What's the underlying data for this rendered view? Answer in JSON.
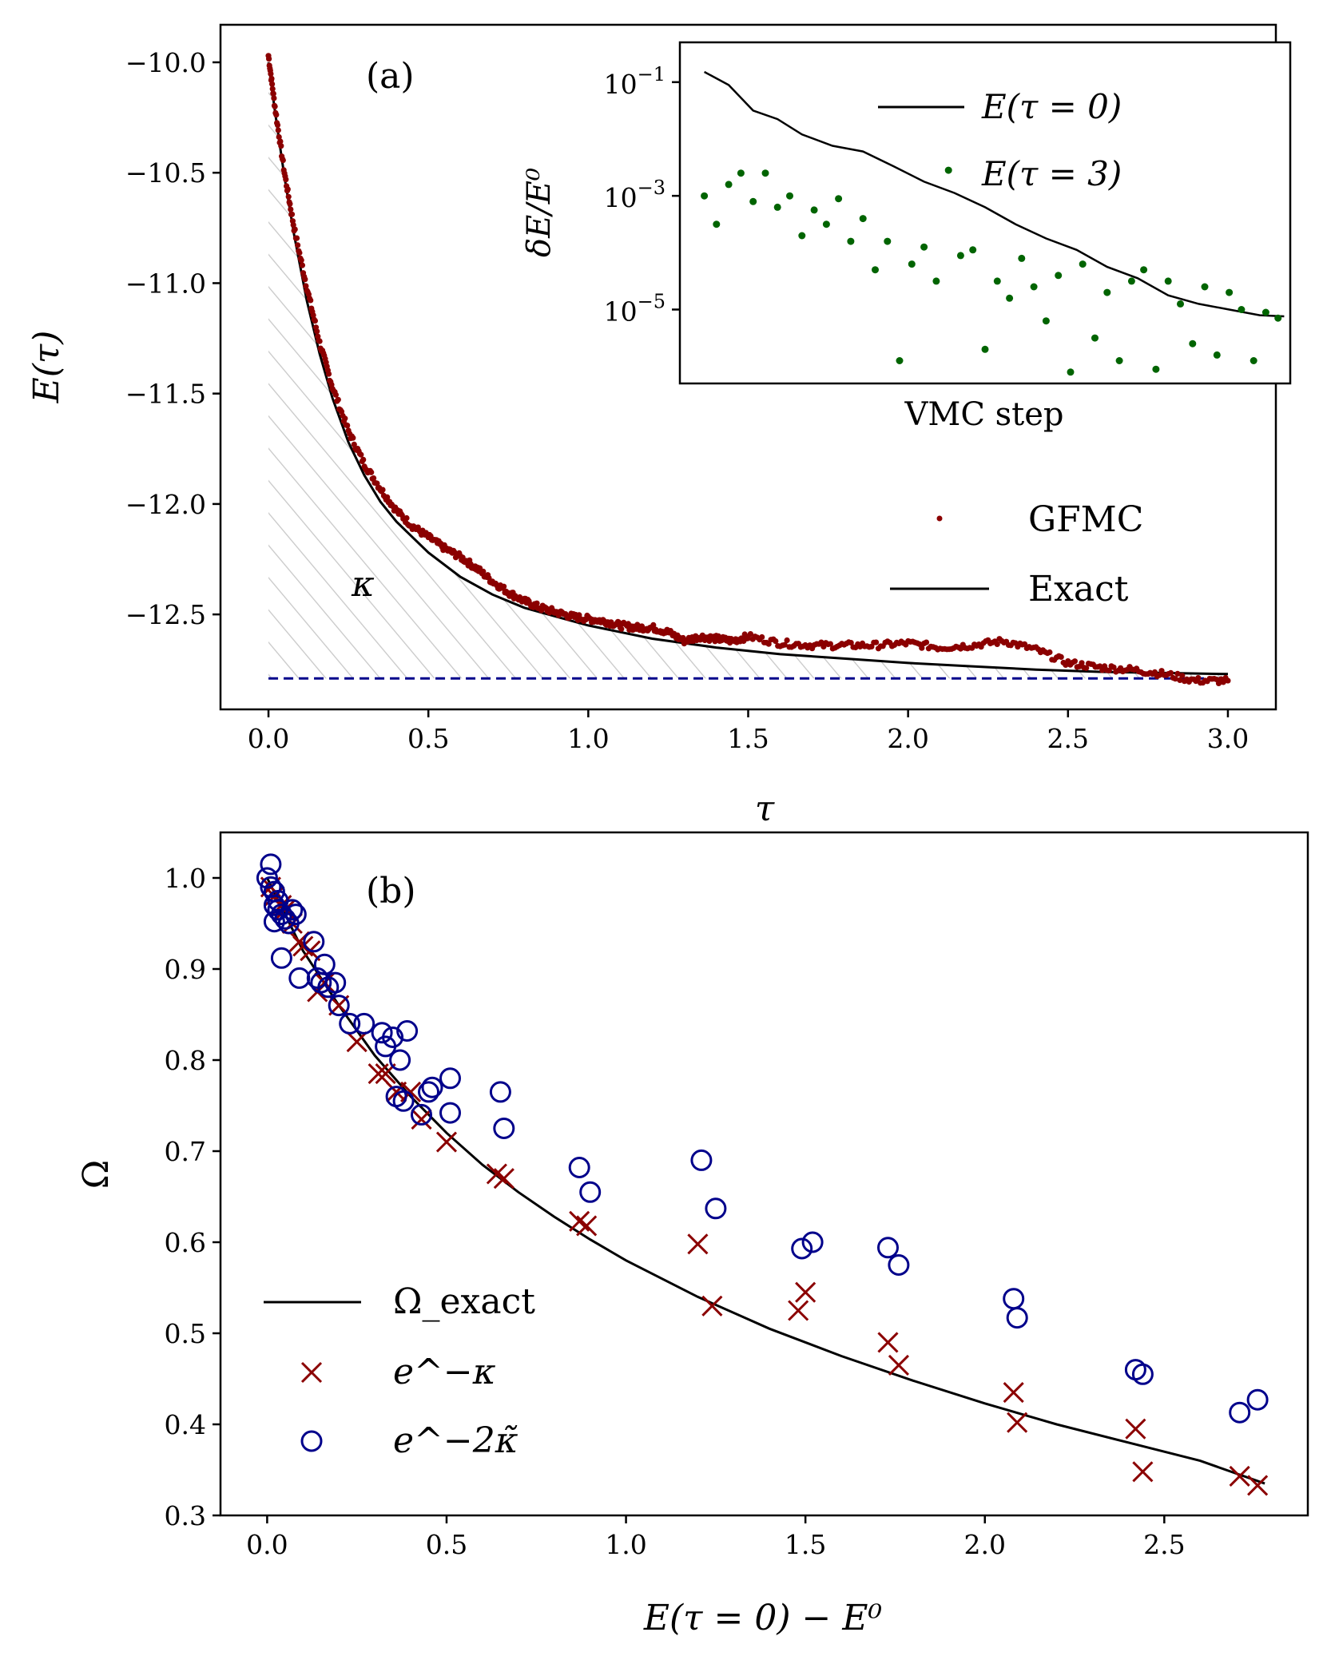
{
  "chart_data": [
    {
      "type": "line",
      "panel_label": "(a)",
      "xlabel": "τ",
      "ylabel": "E(τ)",
      "xlim": [
        -0.15,
        3.15
      ],
      "ylim": [
        -12.93,
        -9.83
      ],
      "xticks": [
        0.0,
        0.5,
        1.0,
        1.5,
        2.0,
        2.5,
        3.0
      ],
      "xtick_labels": [
        "0.0",
        "0.5",
        "1.0",
        "1.5",
        "2.0",
        "2.5",
        "3.0"
      ],
      "yticks": [
        -10.0,
        -10.5,
        -11.0,
        -11.5,
        -12.0,
        -12.5
      ],
      "ytick_labels": [
        "−10.0",
        "−10.5",
        "−11.0",
        "−11.5",
        "−12.0",
        "−12.5"
      ],
      "ground_energy": -12.79,
      "area_label": "κ",
      "legend": {
        "placement": "center-right",
        "entries": [
          "GFMC",
          "Exact"
        ]
      },
      "series": [
        {
          "name": "Exact",
          "style": "line",
          "color": "#000000",
          "x": [
            0.0,
            0.02,
            0.05,
            0.08,
            0.12,
            0.16,
            0.2,
            0.25,
            0.3,
            0.35,
            0.4,
            0.5,
            0.6,
            0.7,
            0.8,
            0.9,
            1.0,
            1.2,
            1.4,
            1.6,
            1.8,
            2.0,
            2.2,
            2.4,
            2.6,
            2.8,
            3.0
          ],
          "y": [
            -10.0,
            -10.22,
            -10.52,
            -10.78,
            -11.08,
            -11.32,
            -11.52,
            -11.72,
            -11.87,
            -11.99,
            -12.08,
            -12.22,
            -12.33,
            -12.41,
            -12.47,
            -12.51,
            -12.55,
            -12.61,
            -12.65,
            -12.68,
            -12.7,
            -12.72,
            -12.735,
            -12.75,
            -12.76,
            -12.765,
            -12.77
          ]
        },
        {
          "name": "GFMC",
          "style": "dots",
          "color": "#8b0000",
          "x": [
            0.0,
            0.02,
            0.05,
            0.08,
            0.12,
            0.16,
            0.2,
            0.25,
            0.3,
            0.35,
            0.4,
            0.45,
            0.5,
            0.55,
            0.6,
            0.65,
            0.7,
            0.75,
            0.8,
            0.85,
            0.9,
            0.95,
            1.0,
            1.05,
            1.1,
            1.15,
            1.2,
            1.25,
            1.3,
            1.35,
            1.4,
            1.45,
            1.5,
            1.6,
            1.7,
            1.8,
            1.9,
            2.0,
            2.1,
            2.2,
            2.3,
            2.4,
            2.5,
            2.6,
            2.7,
            2.8,
            2.9,
            3.0
          ],
          "y": [
            -9.97,
            -10.2,
            -10.5,
            -10.75,
            -11.02,
            -11.27,
            -11.47,
            -11.67,
            -11.82,
            -11.93,
            -12.03,
            -12.1,
            -12.15,
            -12.2,
            -12.24,
            -12.29,
            -12.35,
            -12.4,
            -12.44,
            -12.47,
            -12.49,
            -12.51,
            -12.52,
            -12.53,
            -12.55,
            -12.56,
            -12.56,
            -12.58,
            -12.62,
            -12.6,
            -12.61,
            -12.62,
            -12.6,
            -12.63,
            -12.64,
            -12.64,
            -12.64,
            -12.63,
            -12.65,
            -12.64,
            -12.62,
            -12.66,
            -12.72,
            -12.74,
            -12.75,
            -12.77,
            -12.8,
            -12.8
          ]
        }
      ]
    },
    {
      "type": "line",
      "panel_label": "inset",
      "xlabel": "VMC step",
      "ylabel": "δE/E⁰",
      "y_scale": "log",
      "ylim_log10": [
        -6.3,
        -0.3
      ],
      "xlim": [
        0,
        100
      ],
      "ytick_labels": [
        {
          "exp": -1,
          "base": "10",
          "sup": "−1"
        },
        {
          "exp": -3,
          "base": "10",
          "sup": "−3"
        },
        {
          "exp": -5,
          "base": "10",
          "sup": "−5"
        }
      ],
      "legend": {
        "placement": "top-right",
        "entries": [
          "E(τ = 0)",
          "E(τ = 3)"
        ]
      },
      "series": [
        {
          "name": "E(τ = 0)",
          "style": "line",
          "color": "#000000",
          "x": [
            4,
            8,
            12,
            16,
            20,
            25,
            30,
            35,
            40,
            45,
            50,
            55,
            60,
            65,
            70,
            75,
            80,
            85,
            90,
            95,
            99
          ],
          "log10_y": [
            -0.82,
            -1.05,
            -1.5,
            -1.65,
            -1.92,
            -2.12,
            -2.22,
            -2.48,
            -2.75,
            -2.95,
            -3.2,
            -3.5,
            -3.75,
            -3.95,
            -4.25,
            -4.45,
            -4.75,
            -4.9,
            -5.0,
            -5.1,
            -5.12
          ]
        },
        {
          "name": "E(τ = 3)",
          "style": "dots",
          "color": "#006400",
          "x": [
            4,
            6,
            8,
            10,
            12,
            14,
            16,
            18,
            20,
            22,
            24,
            26,
            28,
            30,
            32,
            34,
            36,
            38,
            40,
            42,
            44,
            46,
            48,
            50,
            52,
            54,
            56,
            58,
            60,
            62,
            64,
            66,
            68,
            70,
            72,
            74,
            76,
            78,
            80,
            82,
            84,
            86,
            88,
            90,
            92,
            94,
            96,
            98
          ],
          "log10_y": [
            -3.0,
            -3.5,
            -2.8,
            -2.6,
            -3.1,
            -2.6,
            -3.2,
            -3.0,
            -3.7,
            -3.25,
            -3.5,
            -3.05,
            -3.8,
            -3.4,
            -4.3,
            -3.8,
            -5.9,
            -4.2,
            -3.9,
            -4.5,
            -2.55,
            -4.05,
            -3.95,
            -5.7,
            -4.5,
            -4.8,
            -4.1,
            -4.6,
            -5.2,
            -4.4,
            -6.1,
            -4.2,
            -5.5,
            -4.7,
            -5.9,
            -4.5,
            -4.3,
            -6.05,
            -4.5,
            -4.9,
            -5.6,
            -4.6,
            -5.8,
            -4.7,
            -5.0,
            -5.9,
            -5.05,
            -5.15
          ]
        }
      ]
    },
    {
      "type": "scatter",
      "panel_label": "(b)",
      "xlabel": "E(τ = 0) − E⁰",
      "ylabel": "Ω",
      "xlim": [
        -0.13,
        2.9
      ],
      "ylim": [
        0.3,
        1.05
      ],
      "xticks": [
        0.0,
        0.5,
        1.0,
        1.5,
        2.0,
        2.5
      ],
      "xtick_labels": [
        "0.0",
        "0.5",
        "1.0",
        "1.5",
        "2.0",
        "2.5"
      ],
      "yticks": [
        0.3,
        0.4,
        0.5,
        0.6,
        0.7,
        0.8,
        0.9,
        1.0
      ],
      "ytick_labels": [
        "0.3",
        "0.4",
        "0.5",
        "0.6",
        "0.7",
        "0.8",
        "0.9",
        "1.0"
      ],
      "legend": {
        "placement": "lower-left",
        "entries": [
          "Ω_exact",
          "e^−κ",
          "e^−2κ̃"
        ]
      },
      "series": [
        {
          "name": "Ω_exact",
          "style": "line",
          "color": "#000000",
          "x": [
            0.0,
            0.1,
            0.2,
            0.3,
            0.4,
            0.5,
            0.6,
            0.7,
            0.8,
            0.9,
            1.0,
            1.2,
            1.4,
            1.6,
            1.8,
            2.0,
            2.2,
            2.4,
            2.6,
            2.78
          ],
          "y": [
            1.0,
            0.92,
            0.86,
            0.805,
            0.76,
            0.72,
            0.685,
            0.655,
            0.628,
            0.603,
            0.58,
            0.54,
            0.505,
            0.475,
            0.448,
            0.423,
            0.4,
            0.38,
            0.36,
            0.335
          ]
        },
        {
          "name": "e^−κ",
          "style": "x-markers",
          "color": "#8b0000",
          "x": [
            0.01,
            0.02,
            0.04,
            0.05,
            0.07,
            0.09,
            0.1,
            0.12,
            0.14,
            0.16,
            0.2,
            0.25,
            0.31,
            0.33,
            0.36,
            0.4,
            0.43,
            0.5,
            0.64,
            0.66,
            0.87,
            0.89,
            1.2,
            1.24,
            1.48,
            1.5,
            1.73,
            1.76,
            2.08,
            2.09,
            2.42,
            2.44,
            2.71,
            2.76
          ],
          "y": [
            0.99,
            0.98,
            0.97,
            0.965,
            0.95,
            0.93,
            0.925,
            0.92,
            0.875,
            0.885,
            0.86,
            0.82,
            0.785,
            0.785,
            0.765,
            0.765,
            0.735,
            0.71,
            0.675,
            0.67,
            0.623,
            0.618,
            0.598,
            0.53,
            0.525,
            0.545,
            0.49,
            0.465,
            0.435,
            0.402,
            0.395,
            0.348,
            0.343,
            0.333
          ]
        },
        {
          "name": "e^−2κ̃",
          "style": "circle-markers",
          "color": "#00008b",
          "x": [
            0.0,
            0.01,
            0.01,
            0.02,
            0.02,
            0.03,
            0.03,
            0.04,
            0.05,
            0.06,
            0.07,
            0.08,
            0.02,
            0.04,
            0.09,
            0.13,
            0.14,
            0.15,
            0.16,
            0.17,
            0.19,
            0.2,
            0.23,
            0.27,
            0.32,
            0.33,
            0.35,
            0.37,
            0.39,
            0.36,
            0.38,
            0.43,
            0.45,
            0.46,
            0.51,
            0.51,
            0.65,
            0.66,
            0.87,
            0.9,
            1.21,
            1.25,
            1.49,
            1.52,
            1.73,
            1.76,
            2.08,
            2.09,
            2.42,
            2.44,
            2.71,
            2.76
          ],
          "y": [
            1.0,
            1.015,
            0.99,
            0.985,
            0.97,
            0.975,
            0.965,
            0.96,
            0.955,
            0.95,
            0.965,
            0.96,
            0.952,
            0.912,
            0.89,
            0.93,
            0.89,
            0.885,
            0.905,
            0.88,
            0.885,
            0.86,
            0.84,
            0.84,
            0.83,
            0.815,
            0.825,
            0.8,
            0.832,
            0.76,
            0.755,
            0.74,
            0.765,
            0.77,
            0.78,
            0.742,
            0.765,
            0.725,
            0.682,
            0.655,
            0.69,
            0.637,
            0.593,
            0.6,
            0.594,
            0.575,
            0.538,
            0.517,
            0.46,
            0.455,
            0.413,
            0.427
          ]
        }
      ]
    }
  ]
}
